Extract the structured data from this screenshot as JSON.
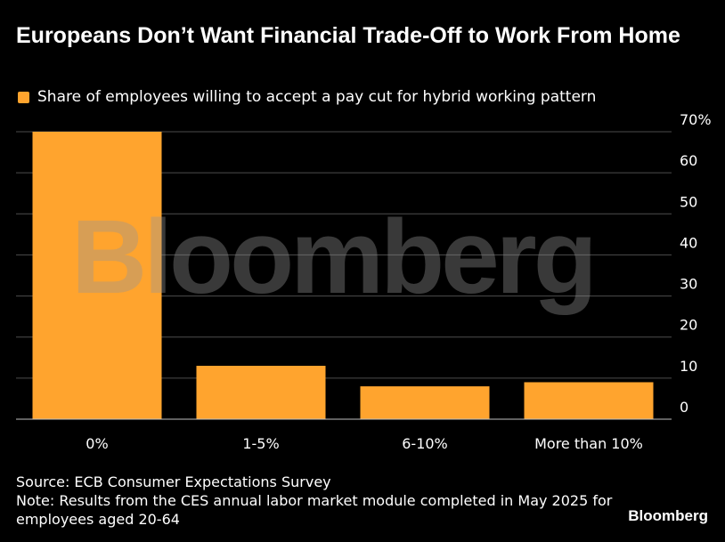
{
  "title": "Europeans Don’t Want Financial Trade-Off to Work From Home",
  "legend_label": "Share of employees willing to accept a pay cut for hybrid working pattern",
  "watermark": "Bloomberg",
  "brand": "Bloomberg",
  "source": "Source: ECB Consumer Expectations Survey",
  "note": "Note: Results from the CES annual labor market module completed in May 2025 for employees aged 20-64",
  "colors": {
    "background": "#000000",
    "bar": "#ffa42e",
    "grid": "#4d4d4d",
    "text": "#ffffff"
  },
  "chart_data": {
    "type": "bar",
    "categories": [
      "0%",
      "1-5%",
      "6-10%",
      "More than 10%"
    ],
    "series": [
      {
        "name": "Share of employees willing to accept a pay cut for hybrid working pattern",
        "values": [
          70,
          13,
          8,
          9
        ]
      }
    ],
    "ylim": [
      0,
      70
    ],
    "yticks": [
      0,
      10,
      20,
      30,
      40,
      50,
      60,
      70
    ],
    "ytick_labels": [
      "0",
      "10",
      "20",
      "30",
      "40",
      "50",
      "60",
      "70%"
    ],
    "y_axis_side": "right",
    "grid": true,
    "legend_placement": "top-left"
  }
}
